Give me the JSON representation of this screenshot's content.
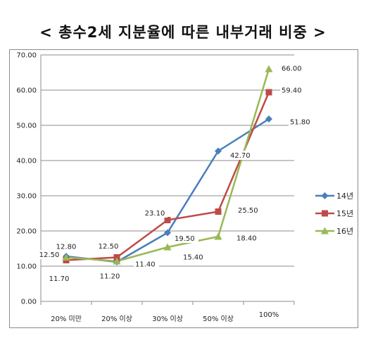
{
  "chart_data": {
    "type": "line",
    "title": "< 총수2세 지분율에 따른 내부거래 비중 >",
    "categories": [
      "20% 미만",
      "20% 이상",
      "30% 이상",
      "50% 이상",
      "100%"
    ],
    "ylim": [
      0,
      70
    ],
    "yticks": [
      "0.00",
      "10.00",
      "20.00",
      "30.00",
      "40.00",
      "50.00",
      "60.00",
      "70.00"
    ],
    "grid": true,
    "legend_position": "right",
    "series": [
      {
        "name": "14년",
        "color": "#4a7ebb",
        "marker": "diamond",
        "values": [
          12.8,
          11.2,
          19.5,
          42.7,
          51.8
        ],
        "labels": [
          "12.80",
          "11.20",
          "19.50",
          "42.70",
          "51.80"
        ]
      },
      {
        "name": "15년",
        "color": "#be4b48",
        "marker": "square",
        "values": [
          11.7,
          12.5,
          23.1,
          25.5,
          59.4
        ],
        "labels": [
          "11.70",
          "12.50",
          "23.10",
          "25.50",
          "59.40"
        ]
      },
      {
        "name": "16년",
        "color": "#98b954",
        "marker": "triangle",
        "values": [
          12.5,
          11.4,
          15.4,
          18.4,
          66.0
        ],
        "labels": [
          "12.50",
          "11.40",
          "15.40",
          "18.40",
          "66.00"
        ]
      }
    ]
  }
}
